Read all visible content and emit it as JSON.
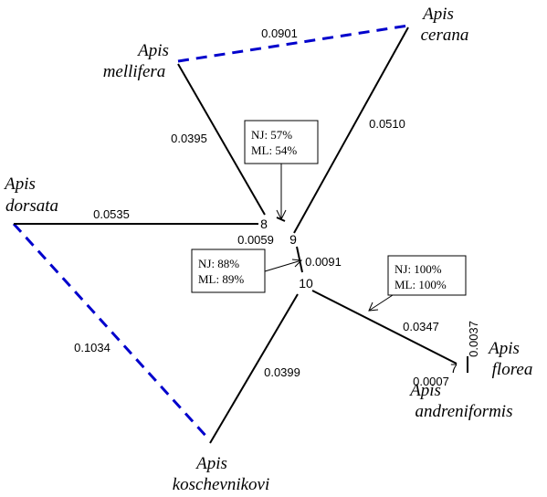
{
  "species": [
    {
      "genus": "Apis",
      "name": "mellifera"
    },
    {
      "genus": "Apis",
      "name": "cerana"
    },
    {
      "genus": "Apis",
      "name": "dorsata"
    },
    {
      "genus": "Apis",
      "name": "koschevnikovi"
    },
    {
      "genus": "Apis",
      "name": "florea"
    },
    {
      "genus": "Apis",
      "name": "andreniformis"
    }
  ],
  "nodes": [
    "8",
    "9",
    "10",
    "7"
  ],
  "branch_lengths": [
    "0.0901",
    "0.0395",
    "0.0510",
    "0.0535",
    "0.0059",
    "0.0091",
    "0.0347",
    "0.0399",
    "0.1034",
    "0.0037",
    "0.0007"
  ],
  "support": [
    {
      "nj": "NJ:  57%",
      "ml": "ML: 54%"
    },
    {
      "nj": "NJ:  88%",
      "ml": "ML: 89%"
    },
    {
      "nj": "NJ:   100%",
      "ml": "ML:  100%"
    }
  ]
}
